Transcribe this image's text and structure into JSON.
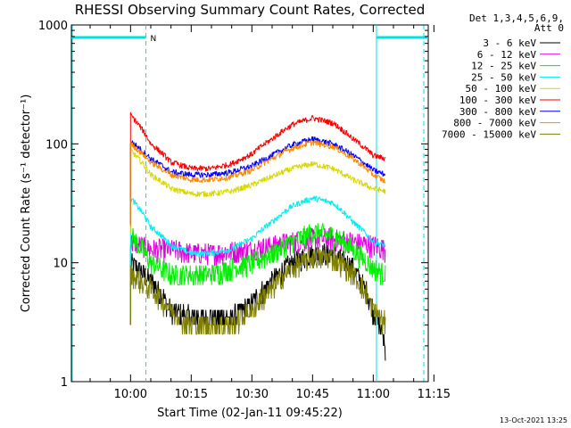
{
  "chart_data": {
    "type": "line",
    "title": "RHESSI Observing Summary Count Rates, Corrected",
    "xlabel": "Start Time (02-Jan-11 09:45:22)",
    "ylabel": "Corrected Count Rate (s⁻¹ detector⁻¹)",
    "ylog": true,
    "ylim": [
      1,
      1000
    ],
    "y_ticks": [
      "1",
      "10",
      "100",
      "1000"
    ],
    "x_ticks": [
      "10:00",
      "10:15",
      "10:30",
      "10:45",
      "11:00",
      "11:15"
    ],
    "x_tick_minutes": [
      0,
      15,
      30,
      45,
      60,
      75
    ],
    "xlim_minutes": [
      -14.63,
      73.6
    ],
    "legend_header": [
      "Det 1,3,4,5,6,9,",
      "Att 0"
    ],
    "footer": "13-Oct-2021 13:25",
    "night_intervals": [
      [
        -14.6,
        3.8
      ],
      [
        60.8,
        73.6
      ]
    ],
    "dashed_markers": [
      3.8,
      72.5
    ],
    "saa_label": "N",
    "x_minutes": [
      0,
      5,
      10,
      15,
      20,
      25,
      30,
      35,
      40,
      45,
      50,
      55,
      60,
      63
    ],
    "series": [
      {
        "name": "3 - 6 keV",
        "color": "#000000",
        "values": [
          10,
          7,
          4,
          3.5,
          3.5,
          3.5,
          4.5,
          7,
          10,
          12,
          12,
          9,
          4,
          2
        ]
      },
      {
        "name": "6 - 12 keV",
        "color": "#e000e0",
        "values": [
          15,
          13,
          13,
          12,
          12,
          12.5,
          13,
          14,
          15,
          16,
          16,
          15,
          14,
          13
        ]
      },
      {
        "name": "12 - 25 keV",
        "color": "#00ee00",
        "values": [
          17,
          10,
          8,
          8,
          8,
          9,
          10,
          12,
          15,
          18,
          17,
          13,
          9,
          8
        ]
      },
      {
        "name": "25 - 50 keV",
        "color": "#00eeee",
        "values": [
          35,
          20,
          14,
          12,
          12,
          13,
          16,
          22,
          30,
          35,
          32,
          22,
          15,
          14
        ]
      },
      {
        "name": "50 - 100 keV",
        "color": "#d8d800",
        "values": [
          88,
          55,
          42,
          38,
          38,
          40,
          45,
          53,
          62,
          68,
          62,
          50,
          42,
          40
        ]
      },
      {
        "name": "100 - 300 keV",
        "color": "#ff0000",
        "values": [
          175,
          100,
          70,
          62,
          62,
          68,
          82,
          110,
          145,
          165,
          150,
          110,
          80,
          75
        ]
      },
      {
        "name": "300 - 800 keV",
        "color": "#0000ff",
        "values": [
          105,
          75,
          58,
          55,
          55,
          58,
          65,
          80,
          98,
          110,
          100,
          80,
          60,
          55
        ]
      },
      {
        "name": "800 - 7000 keV",
        "color": "#ff8800",
        "values": [
          100,
          70,
          55,
          50,
          50,
          53,
          60,
          75,
          92,
          103,
          95,
          75,
          55,
          48
        ]
      },
      {
        "name": "7000 - 15000 keV",
        "color": "#808000",
        "values": [
          8,
          6,
          4,
          3,
          3,
          3,
          4,
          6,
          9,
          11,
          11,
          8,
          4,
          3
        ]
      }
    ]
  }
}
